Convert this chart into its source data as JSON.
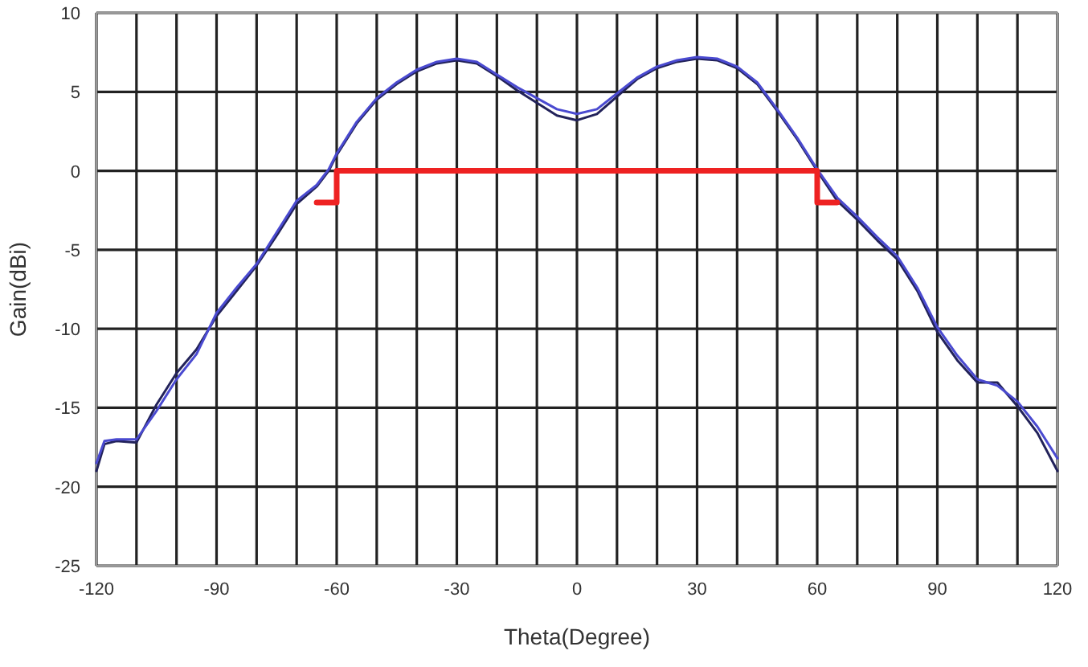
{
  "chart_data": {
    "type": "line",
    "xlabel": "Theta(Degree)",
    "ylabel": "Gain(dBi)",
    "xlim": [
      -120,
      120
    ],
    "ylim": [
      -25,
      10
    ],
    "xticks": [
      -120,
      {
        "value": -110,
        "label": null
      },
      {
        "value": -100,
        "label": null
      },
      -90,
      {
        "value": -80,
        "label": null
      },
      {
        "value": -70,
        "label": null
      },
      -60,
      {
        "value": -50,
        "label": null
      },
      {
        "value": -40,
        "label": null
      },
      -30,
      {
        "value": -20,
        "label": null
      },
      {
        "value": -10,
        "label": null
      },
      0,
      {
        "value": 10,
        "label": null
      },
      {
        "value": 20,
        "label": null
      },
      30,
      {
        "value": 40,
        "label": null
      },
      {
        "value": 50,
        "label": null
      },
      60,
      {
        "value": 70,
        "label": null
      },
      {
        "value": 80,
        "label": null
      },
      90,
      {
        "value": 100,
        "label": null
      },
      {
        "value": 110,
        "label": null
      },
      120
    ],
    "yticks": [
      -25,
      -20,
      -15,
      -10,
      -5,
      0,
      5,
      10
    ],
    "grid": true,
    "marker": "none",
    "line_style": "solid",
    "series": [
      {
        "color": "#22225a",
        "x": [
          -120,
          -118,
          -115,
          -110,
          -105,
          -100,
          -95,
          -90,
          -85,
          -80,
          -75,
          -70,
          -65,
          -62,
          -60,
          -55,
          -50,
          -45,
          -40,
          -35,
          -30,
          -25,
          -20,
          -15,
          -10,
          -5,
          0,
          5,
          10,
          15,
          20,
          25,
          30,
          35,
          40,
          45,
          50,
          55,
          60,
          65,
          70,
          75,
          80,
          85,
          90,
          95,
          100,
          105,
          110,
          115,
          120
        ],
        "values": [
          -19,
          -17.3,
          -17.1,
          -17.2,
          -14.8,
          -12.8,
          -11.3,
          -9.2,
          -7.6,
          -6,
          -4.1,
          -2.1,
          -1,
          0,
          1,
          3,
          4.5,
          5.5,
          6.3,
          6.8,
          7,
          6.8,
          6,
          5.1,
          4.3,
          3.5,
          3.2,
          3.6,
          4.7,
          5.8,
          6.5,
          6.9,
          7.1,
          7,
          6.5,
          5.5,
          3.8,
          2,
          0,
          -1.9,
          -3.1,
          -4.4,
          -5.6,
          -7.6,
          -10.2,
          -12,
          -13.4,
          -13.4,
          -14.9,
          -16.6,
          -19
        ]
      },
      {
        "color": "#4a4ad0",
        "x": [
          -120,
          -118,
          -115,
          -110,
          -105,
          -100,
          -95,
          -90,
          -85,
          -80,
          -75,
          -70,
          -65,
          -62,
          -60,
          -55,
          -50,
          -45,
          -40,
          -35,
          -30,
          -25,
          -20,
          -15,
          -10,
          -5,
          0,
          5,
          10,
          15,
          20,
          25,
          30,
          35,
          40,
          45,
          50,
          55,
          60,
          65,
          70,
          75,
          80,
          85,
          90,
          95,
          100,
          105,
          110,
          115,
          120
        ],
        "values": [
          -18.5,
          -17.1,
          -17,
          -17,
          -15.2,
          -13.2,
          -11.6,
          -9,
          -7.4,
          -5.9,
          -3.9,
          -1.9,
          -0.9,
          0.1,
          1.1,
          3.1,
          4.6,
          5.6,
          6.4,
          6.9,
          7.1,
          6.9,
          6.1,
          5.3,
          4.6,
          3.9,
          3.6,
          3.9,
          4.9,
          5.9,
          6.6,
          7,
          7.2,
          7.1,
          6.6,
          5.6,
          3.9,
          2.1,
          0.1,
          -1.7,
          -2.9,
          -4.2,
          -5.4,
          -7.4,
          -9.9,
          -11.7,
          -13.2,
          -13.6,
          -14.6,
          -16.2,
          -18.2
        ]
      },
      {
        "color": "#ee2222",
        "x": [
          -65,
          -60,
          -60,
          60,
          60,
          65
        ],
        "values": [
          -2,
          -2,
          0,
          0,
          -2,
          -2
        ]
      }
    ]
  }
}
